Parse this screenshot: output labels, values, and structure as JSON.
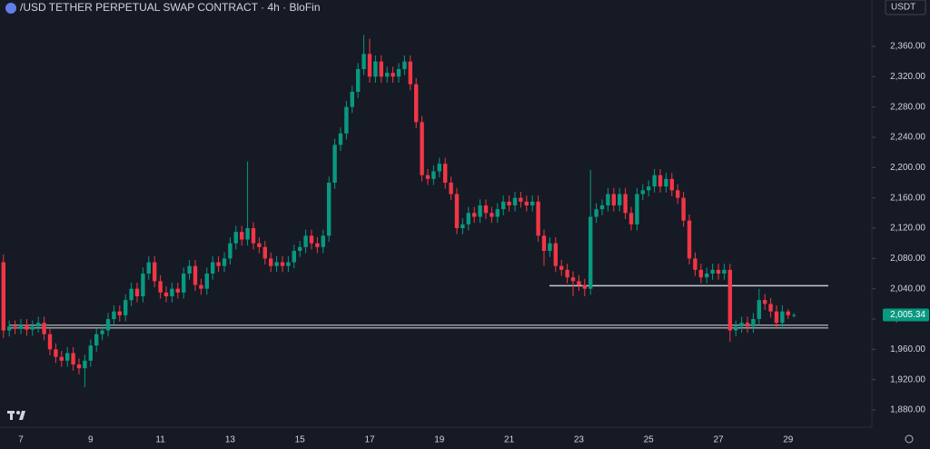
{
  "chart_data": {
    "type": "candlestick",
    "title": "/USD TETHER PERPETUAL SWAP CONTRACT · 4h · BloFin",
    "currency": "USDT",
    "up_color": "#089981",
    "down_color": "#f23645",
    "categories": [
      null,
      null,
      null,
      "7",
      null,
      null,
      null,
      null,
      null,
      null,
      null,
      null,
      null,
      null,
      null,
      "9",
      null,
      null,
      null,
      null,
      null,
      null,
      null,
      null,
      null,
      null,
      null,
      "11",
      null,
      null,
      null,
      null,
      null,
      null,
      null,
      null,
      null,
      null,
      null,
      "13",
      null,
      null,
      null,
      null,
      null,
      null,
      null,
      null,
      null,
      null,
      null,
      "15",
      null,
      null,
      null,
      null,
      null,
      null,
      null,
      null,
      null,
      null,
      null,
      "17",
      null,
      null,
      null,
      null,
      null,
      null,
      null,
      null,
      null,
      null,
      null,
      "19",
      null,
      null,
      null,
      null,
      null,
      null,
      null,
      null,
      null,
      null,
      null,
      "21",
      null,
      null,
      null,
      null,
      null,
      null,
      null,
      null,
      null,
      null,
      null,
      "23",
      null,
      null,
      null,
      null,
      null,
      null,
      null,
      null,
      null,
      null,
      null,
      "25",
      null,
      null,
      null,
      null,
      null,
      null,
      null,
      null,
      null,
      null,
      null,
      "27",
      null,
      null,
      null,
      null,
      null,
      null,
      null,
      null,
      null,
      null,
      null,
      "29",
      null
    ],
    "open": [
      2075,
      1985,
      1990,
      1988,
      1992,
      1986,
      1990,
      1995,
      1980,
      1960,
      1950,
      1945,
      1955,
      1940,
      1935,
      1945,
      1965,
      1980,
      1985,
      2000,
      2010,
      2005,
      2025,
      2040,
      2030,
      2060,
      2075,
      2050,
      2035,
      2030,
      2040,
      2035,
      2060,
      2070,
      2045,
      2040,
      2060,
      2075,
      2070,
      2080,
      2100,
      2115,
      2105,
      2120,
      2100,
      2095,
      2080,
      2070,
      2075,
      2070,
      2075,
      2090,
      2095,
      2110,
      2100,
      2095,
      2110,
      2180,
      2230,
      2245,
      2280,
      2300,
      2330,
      2350,
      2320,
      2340,
      2320,
      2325,
      2320,
      2330,
      2340,
      2310,
      2260,
      2190,
      2185,
      2195,
      2205,
      2180,
      2165,
      2120,
      2125,
      2140,
      2135,
      2150,
      2140,
      2135,
      2145,
      2155,
      2150,
      2160,
      2155,
      2150,
      2155,
      2110,
      2090,
      2100,
      2070,
      2065,
      2055,
      2050,
      2045,
      2040,
      2135,
      2145,
      2150,
      2165,
      2150,
      2165,
      2140,
      2125,
      2165,
      2170,
      2175,
      2190,
      2175,
      2185,
      2170,
      2160,
      2130,
      2080,
      2065,
      2055,
      2060,
      2065,
      2060,
      2065,
      1985,
      1990,
      1995,
      1990,
      2000,
      2025,
      2020,
      2010,
      1995,
      2010,
      2005
    ],
    "high": [
      2085,
      1998,
      1998,
      2000,
      2000,
      1998,
      2003,
      2003,
      1988,
      1968,
      1958,
      1963,
      1963,
      1948,
      1953,
      1973,
      1988,
      1993,
      2008,
      2018,
      2018,
      2033,
      2048,
      2048,
      2068,
      2083,
      2083,
      2058,
      2043,
      2048,
      2048,
      2068,
      2078,
      2078,
      2053,
      2068,
      2083,
      2083,
      2088,
      2108,
      2123,
      2123,
      2208,
      2128,
      2108,
      2103,
      2088,
      2083,
      2083,
      2083,
      2098,
      2103,
      2118,
      2118,
      2108,
      2118,
      2188,
      2238,
      2253,
      2288,
      2308,
      2338,
      2375,
      2370,
      2348,
      2348,
      2333,
      2333,
      2338,
      2348,
      2348,
      2318,
      2268,
      2198,
      2203,
      2213,
      2213,
      2188,
      2173,
      2133,
      2148,
      2148,
      2158,
      2158,
      2148,
      2153,
      2163,
      2163,
      2168,
      2168,
      2163,
      2163,
      2163,
      2118,
      2108,
      2108,
      2078,
      2073,
      2063,
      2058,
      2053,
      2197,
      2153,
      2158,
      2173,
      2173,
      2173,
      2173,
      2148,
      2173,
      2178,
      2183,
      2198,
      2198,
      2193,
      2193,
      2178,
      2168,
      2138,
      2088,
      2073,
      2068,
      2073,
      2073,
      2073,
      2073,
      1998,
      2003,
      2003,
      2008,
      2040,
      2033,
      2028,
      2018,
      2018,
      2013,
      2008
    ],
    "low": [
      1975,
      1977,
      1980,
      1980,
      1978,
      1978,
      1982,
      1972,
      1952,
      1942,
      1937,
      1937,
      1932,
      1927,
      1910,
      1937,
      1957,
      1972,
      1977,
      1992,
      1997,
      1997,
      2017,
      2022,
      2022,
      2052,
      2042,
      2027,
      2022,
      2022,
      2027,
      2027,
      2052,
      2037,
      2032,
      2032,
      2052,
      2062,
      2062,
      2072,
      2092,
      2097,
      2097,
      2092,
      2087,
      2072,
      2062,
      2062,
      2062,
      2062,
      2067,
      2082,
      2087,
      2092,
      2087,
      2087,
      2102,
      2172,
      2222,
      2237,
      2272,
      2292,
      2322,
      2312,
      2312,
      2312,
      2312,
      2312,
      2312,
      2322,
      2302,
      2252,
      2182,
      2177,
      2177,
      2187,
      2172,
      2157,
      2112,
      2112,
      2117,
      2127,
      2127,
      2132,
      2127,
      2127,
      2137,
      2142,
      2142,
      2147,
      2142,
      2142,
      2102,
      2070,
      2082,
      2062,
      2057,
      2047,
      2030,
      2037,
      2030,
      2032,
      2127,
      2137,
      2142,
      2142,
      2142,
      2132,
      2117,
      2117,
      2157,
      2162,
      2167,
      2167,
      2167,
      2162,
      2152,
      2122,
      2072,
      2057,
      2047,
      2047,
      2052,
      2052,
      2052,
      1970,
      1977,
      1982,
      1982,
      1982,
      1992,
      2012,
      2002,
      1987,
      1987,
      2000,
      2002
    ],
    "close": [
      1985,
      1990,
      1988,
      1992,
      1986,
      1990,
      1995,
      1980,
      1960,
      1950,
      1945,
      1955,
      1940,
      1935,
      1945,
      1965,
      1980,
      1985,
      2000,
      2010,
      2005,
      2025,
      2040,
      2030,
      2060,
      2075,
      2050,
      2035,
      2030,
      2040,
      2035,
      2060,
      2070,
      2045,
      2040,
      2060,
      2075,
      2070,
      2080,
      2100,
      2115,
      2105,
      2120,
      2100,
      2095,
      2080,
      2070,
      2075,
      2070,
      2075,
      2090,
      2095,
      2110,
      2100,
      2095,
      2110,
      2180,
      2230,
      2245,
      2280,
      2300,
      2330,
      2350,
      2320,
      2340,
      2320,
      2325,
      2320,
      2330,
      2340,
      2310,
      2260,
      2190,
      2185,
      2195,
      2205,
      2180,
      2165,
      2120,
      2125,
      2140,
      2135,
      2150,
      2140,
      2135,
      2145,
      2155,
      2150,
      2160,
      2155,
      2150,
      2155,
      2110,
      2090,
      2100,
      2070,
      2065,
      2055,
      2050,
      2045,
      2040,
      2135,
      2145,
      2150,
      2165,
      2150,
      2165,
      2140,
      2125,
      2165,
      2170,
      2175,
      2190,
      2175,
      2185,
      2170,
      2160,
      2130,
      2080,
      2065,
      2055,
      2060,
      2065,
      2060,
      2065,
      1985,
      1990,
      1995,
      1990,
      2000,
      2025,
      2020,
      2010,
      1995,
      2010,
      2005,
      2005.34
    ],
    "ylim": [
      1857.2,
      2421.2
    ],
    "yticks": [
      {
        "value": 1880,
        "label": "1,880.00"
      },
      {
        "value": 1920,
        "label": "1,920.00"
      },
      {
        "value": 1960,
        "label": "1,960.00"
      },
      {
        "value": 2000,
        "label": "2,000.00"
      },
      {
        "value": 2040,
        "label": "2,040.00"
      },
      {
        "value": 2080,
        "label": "2,080.00"
      },
      {
        "value": 2120,
        "label": "2,120.00"
      },
      {
        "value": 2160,
        "label": "2,160.00"
      },
      {
        "value": 2200,
        "label": "2,200.00"
      },
      {
        "value": 2240,
        "label": "2,240.00"
      },
      {
        "value": 2280,
        "label": "2,280.00"
      },
      {
        "value": 2320,
        "label": "2,320.00"
      },
      {
        "value": 2360,
        "label": "2,360.00"
      }
    ],
    "levels": [
      1990,
      2044
    ],
    "last_price": {
      "value": 2005.34,
      "label": "2,005.34"
    }
  }
}
